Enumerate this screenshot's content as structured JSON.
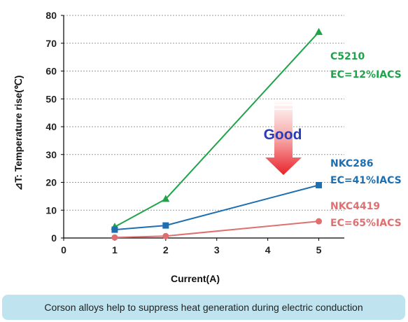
{
  "chart_data": {
    "type": "line",
    "xlabel": "Current(A)",
    "ylabel": "⊿T: Temperature rise(℃)",
    "xlim": [
      0,
      5.5
    ],
    "ylim": [
      0,
      80
    ],
    "xticks": [
      "0",
      "1",
      "2",
      "3",
      "4",
      "5"
    ],
    "yticks": [
      "0",
      "10",
      "20",
      "30",
      "40",
      "50",
      "60",
      "70",
      "80"
    ],
    "grid": "horizontal dotted",
    "series": [
      {
        "name": "C5210",
        "label": "EC=12%IACS",
        "color": "#1fa34a",
        "marker": "triangle",
        "x": [
          1,
          2,
          5
        ],
        "y": [
          4,
          14,
          74
        ]
      },
      {
        "name": "NKC286",
        "label": "EC=41%IACS",
        "color": "#1e6fb0",
        "marker": "square",
        "x": [
          1,
          2,
          5
        ],
        "y": [
          3,
          4.5,
          19
        ]
      },
      {
        "name": "NKC4419",
        "label": "EC=65%IACS",
        "color": "#e07070",
        "marker": "circle",
        "x": [
          1,
          2,
          5
        ],
        "y": [
          0.2,
          0.7,
          6
        ]
      }
    ],
    "annotation": "Good"
  },
  "caption": "Corson alloys help to suppress heat generation during electric conduction"
}
